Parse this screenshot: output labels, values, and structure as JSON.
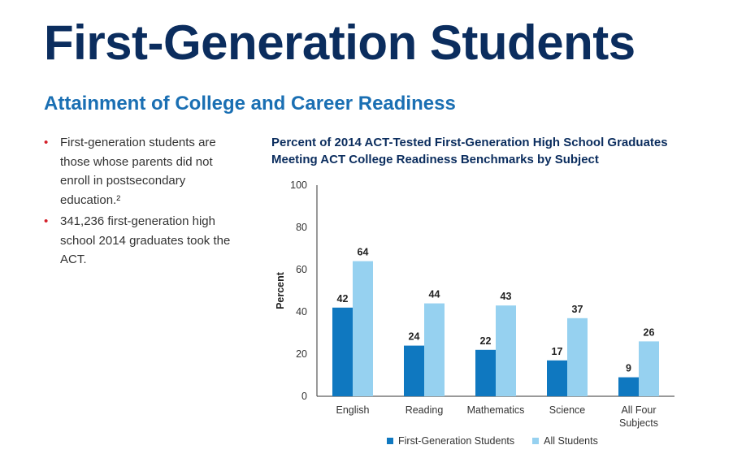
{
  "header": {
    "title": "First-Generation Students",
    "subtitle": "Attainment of College and Career Readiness"
  },
  "bullets": [
    "First-generation students are those whose parents did not enroll in postsecondary education.²",
    "341,236 first-generation high school 2014 graduates took the ACT."
  ],
  "colors": {
    "title": "#0b2d5e",
    "subtitle": "#1a6fb3",
    "bullet_dot": "#d4202a",
    "series_first_gen": "#0f78c0",
    "series_all": "#96d1f0"
  },
  "chart_data": {
    "type": "bar",
    "title": "Percent of 2014 ACT-Tested First-Generation High School Graduates Meeting ACT College Readiness Benchmarks by Subject",
    "xlabel": "",
    "ylabel": "Percent",
    "ylim": [
      0,
      100
    ],
    "yticks": [
      "0",
      "20",
      "40",
      "60",
      "80",
      "100"
    ],
    "categories": [
      [
        "English"
      ],
      [
        "Reading"
      ],
      [
        "Mathematics"
      ],
      [
        "Science"
      ],
      [
        "All Four",
        "Subjects"
      ]
    ],
    "series": [
      {
        "name": "First-Generation Students",
        "values": [
          42,
          24,
          22,
          17,
          9
        ],
        "color": "#0f78c0"
      },
      {
        "name": "All Students",
        "values": [
          64,
          44,
          43,
          37,
          26
        ],
        "color": "#96d1f0"
      }
    ],
    "grid": false,
    "legend": "bottom"
  }
}
